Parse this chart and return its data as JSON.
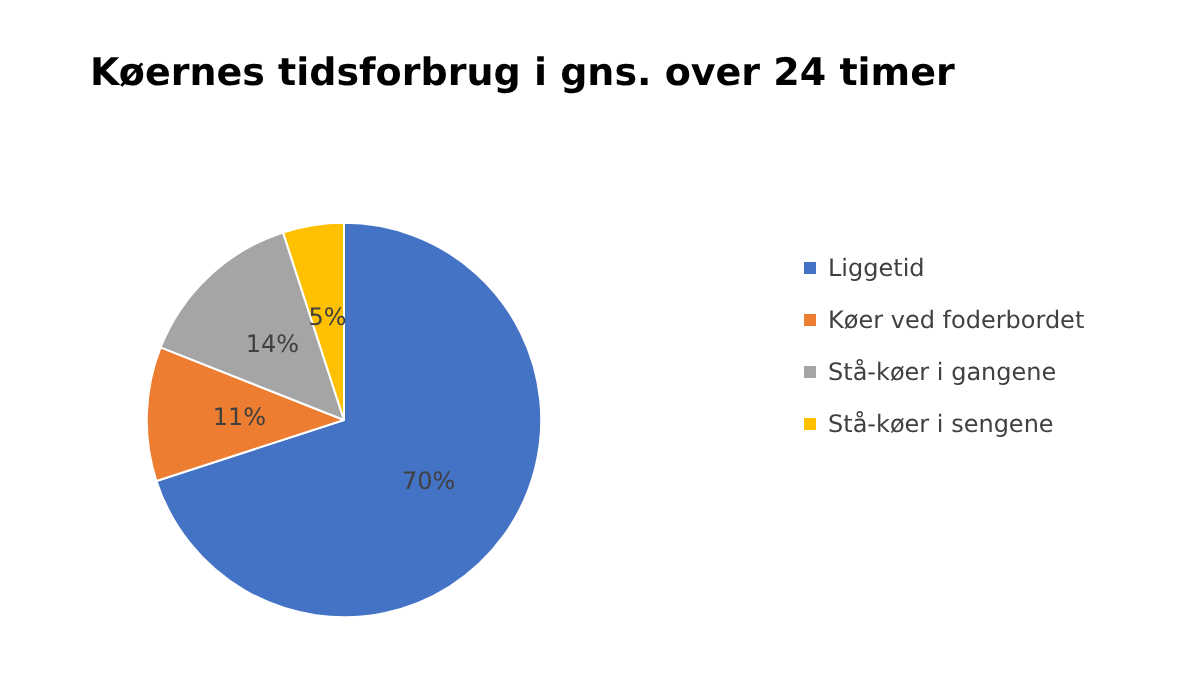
{
  "chart_data": {
    "type": "pie",
    "title": "Køernes tidsforbrug i gns. over 24 timer",
    "categories": [
      "Liggetid",
      "Køer ved foderbordet",
      "Stå-køer i gangene",
      "Stå-køer i sengene"
    ],
    "values": [
      70,
      11,
      14,
      5
    ],
    "colors": [
      "#4472c4",
      "#ed7d31",
      "#a5a5a5",
      "#ffc000"
    ],
    "value_labels": [
      "70%",
      "11%",
      "14%",
      "5%"
    ],
    "legend": "right"
  }
}
